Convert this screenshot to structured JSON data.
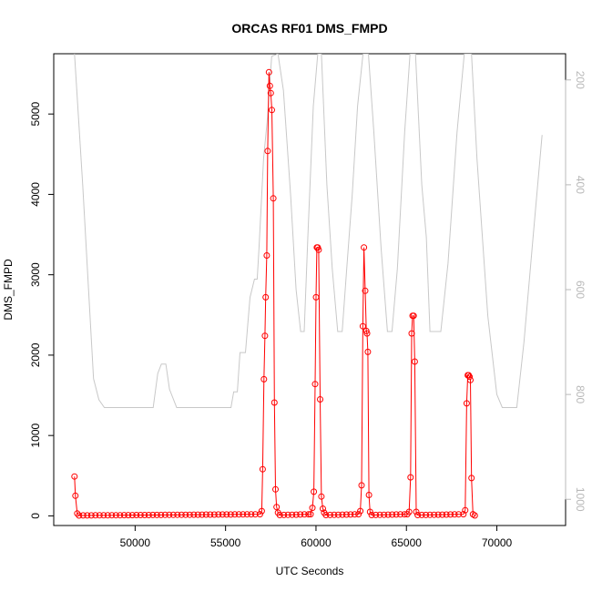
{
  "chart_data": {
    "type": "line",
    "title": "ORCAS RF01 DMS_FMPD",
    "xlabel": "UTC Seconds",
    "ylabel": "DMS_FMPD",
    "xlim": [
      45500,
      73800
    ],
    "ylim": [
      -120,
      5750
    ],
    "y2lim": [
      150,
      1050
    ],
    "y2_inverted": true,
    "x_ticks": [
      50000,
      55000,
      60000,
      65000,
      70000
    ],
    "y_ticks": [
      0,
      1000,
      2000,
      3000,
      4000,
      5000
    ],
    "y2_ticks": [
      200,
      400,
      600,
      800,
      1000
    ],
    "grid": false,
    "colors": {
      "primary": "#ff0000",
      "secondary": "#c8c8c8"
    },
    "series": [
      {
        "axis": "left",
        "color": "#ff0000",
        "marker": "open-circle",
        "points": [
          [
            46650,
            490
          ],
          [
            46700,
            250
          ],
          [
            46800,
            30
          ],
          [
            46900,
            5
          ],
          [
            56900,
            20
          ],
          [
            57000,
            60
          ],
          [
            57050,
            580
          ],
          [
            57120,
            1700
          ],
          [
            57180,
            2240
          ],
          [
            57220,
            2720
          ],
          [
            57280,
            3240
          ],
          [
            57330,
            4540
          ],
          [
            57400,
            5520
          ],
          [
            57450,
            5350
          ],
          [
            57500,
            5260
          ],
          [
            57560,
            5050
          ],
          [
            57640,
            3950
          ],
          [
            57700,
            1410
          ],
          [
            57760,
            330
          ],
          [
            57820,
            110
          ],
          [
            57900,
            40
          ],
          [
            58000,
            10
          ],
          [
            59700,
            20
          ],
          [
            59800,
            100
          ],
          [
            59880,
            300
          ],
          [
            59950,
            1640
          ],
          [
            60000,
            2720
          ],
          [
            60050,
            3340
          ],
          [
            60100,
            3340
          ],
          [
            60150,
            3310
          ],
          [
            60230,
            1450
          ],
          [
            60300,
            240
          ],
          [
            60380,
            90
          ],
          [
            60450,
            40
          ],
          [
            60550,
            10
          ],
          [
            62350,
            20
          ],
          [
            62450,
            60
          ],
          [
            62520,
            380
          ],
          [
            62590,
            2360
          ],
          [
            62650,
            3340
          ],
          [
            62720,
            2800
          ],
          [
            62780,
            2300
          ],
          [
            62820,
            2270
          ],
          [
            62870,
            2040
          ],
          [
            62930,
            260
          ],
          [
            62990,
            50
          ],
          [
            63080,
            10
          ],
          [
            65050,
            20
          ],
          [
            65150,
            50
          ],
          [
            65230,
            480
          ],
          [
            65290,
            2270
          ],
          [
            65340,
            2490
          ],
          [
            65400,
            2490
          ],
          [
            65460,
            1920
          ],
          [
            65540,
            50
          ],
          [
            65620,
            10
          ],
          [
            68150,
            20
          ],
          [
            68250,
            70
          ],
          [
            68330,
            1400
          ],
          [
            68390,
            1750
          ],
          [
            68440,
            1750
          ],
          [
            68490,
            1730
          ],
          [
            68540,
            1690
          ],
          [
            68600,
            470
          ],
          [
            68680,
            20
          ],
          [
            68780,
            5
          ]
        ]
      },
      {
        "axis": "right",
        "color": "#c8c8c8",
        "points": [
          [
            46650,
            150
          ],
          [
            47100,
            400
          ],
          [
            47700,
            770
          ],
          [
            48000,
            810
          ],
          [
            48300,
            825
          ],
          [
            49000,
            825
          ],
          [
            50500,
            825
          ],
          [
            51000,
            825
          ],
          [
            51250,
            760
          ],
          [
            51450,
            742
          ],
          [
            51700,
            742
          ],
          [
            51900,
            790
          ],
          [
            52300,
            825
          ],
          [
            54000,
            825
          ],
          [
            55000,
            825
          ],
          [
            55300,
            825
          ],
          [
            55450,
            795
          ],
          [
            55650,
            795
          ],
          [
            55800,
            720
          ],
          [
            56100,
            720
          ],
          [
            56350,
            615
          ],
          [
            56600,
            580
          ],
          [
            56750,
            580
          ],
          [
            56850,
            520
          ],
          [
            57100,
            350
          ],
          [
            57300,
            280
          ],
          [
            57550,
            155
          ],
          [
            57900,
            150
          ],
          [
            58200,
            220
          ],
          [
            58600,
            420
          ],
          [
            58900,
            600
          ],
          [
            59150,
            680
          ],
          [
            59350,
            680
          ],
          [
            59550,
            500
          ],
          [
            59850,
            250
          ],
          [
            60100,
            150
          ],
          [
            60300,
            150
          ],
          [
            60600,
            400
          ],
          [
            60900,
            560
          ],
          [
            61200,
            680
          ],
          [
            61450,
            680
          ],
          [
            61700,
            560
          ],
          [
            62000,
            420
          ],
          [
            62300,
            250
          ],
          [
            62600,
            150
          ],
          [
            62900,
            150
          ],
          [
            63200,
            300
          ],
          [
            63600,
            520
          ],
          [
            63950,
            680
          ],
          [
            64200,
            680
          ],
          [
            64500,
            560
          ],
          [
            64900,
            300
          ],
          [
            65200,
            150
          ],
          [
            65500,
            150
          ],
          [
            65850,
            400
          ],
          [
            66100,
            500
          ],
          [
            66300,
            680
          ],
          [
            66900,
            680
          ],
          [
            67300,
            550
          ],
          [
            67800,
            300
          ],
          [
            68200,
            150
          ],
          [
            68600,
            150
          ],
          [
            68900,
            350
          ],
          [
            69500,
            650
          ],
          [
            70000,
            800
          ],
          [
            70300,
            825
          ],
          [
            71100,
            825
          ],
          [
            71500,
            700
          ],
          [
            72000,
            500
          ],
          [
            72500,
            305
          ]
        ]
      }
    ]
  }
}
